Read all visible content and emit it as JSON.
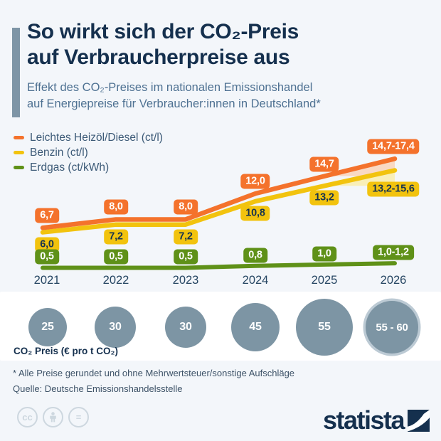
{
  "header": {
    "title_line1": "So wirkt sich der CO₂-Preis",
    "title_line2": "auf Verbraucherpreise aus",
    "subtitle_line1": "Effekt des CO₂-Preises im nationalen Emissionshandel",
    "subtitle_line2": "auf Energiepreise für Verbraucher:innen in Deutschland*"
  },
  "legend": [
    {
      "label": "Leichtes Heizöl/Diesel (ct/l)",
      "color": "#f4722c"
    },
    {
      "label": "Benzin (ct/l)",
      "color": "#f2c30e"
    },
    {
      "label": "Erdgas (ct/kWh)",
      "color": "#5f9118"
    }
  ],
  "chart_data": {
    "type": "line",
    "x_categories": [
      "2021",
      "2022",
      "2023",
      "2024",
      "2025",
      "2026"
    ],
    "ylim": [
      0,
      19
    ],
    "grid": false,
    "legend_position": "top-left",
    "series": [
      {
        "name": "Leichtes Heizöl/Diesel (ct/l)",
        "color": "#f4722c",
        "band_color": "#f9d9c4",
        "text_color": "#ffffff",
        "label_side": "above",
        "values": [
          6.7,
          8.0,
          8.0,
          12.0,
          14.7,
          [
            14.7,
            17.4
          ]
        ],
        "labels": [
          "6,7",
          "8,0",
          "8,0",
          "12,0",
          "14,7",
          "14,7-17,4"
        ]
      },
      {
        "name": "Benzin (ct/l)",
        "color": "#f2c30e",
        "band_color": "#f9efb8",
        "text_color": "#17334f",
        "label_side": "below",
        "values": [
          6.0,
          7.2,
          7.2,
          10.8,
          13.2,
          [
            13.2,
            15.6
          ]
        ],
        "labels": [
          "6,0",
          "7,2",
          "7,2",
          "10,8",
          "13,2",
          "13,2-15,6"
        ]
      },
      {
        "name": "Erdgas (ct/kWh)",
        "color": "#5f9118",
        "band_color": "#dfe9cb",
        "text_color": "#ffffff",
        "label_side": "above",
        "values": [
          0.5,
          0.5,
          0.5,
          0.8,
          1.0,
          [
            1.0,
            1.2
          ]
        ],
        "labels": [
          "0,5",
          "0,5",
          "0,5",
          "0,8",
          "1,0",
          "1,0-1,2"
        ]
      }
    ]
  },
  "co2_row": {
    "label": "CO₂ Preis (€ pro t CO₂)",
    "values": [
      25,
      30,
      30,
      45,
      55,
      60
    ],
    "labels": [
      "25",
      "30",
      "30",
      "45",
      "55",
      "55 - 60"
    ],
    "circle_color": "#7d95a4",
    "ring_color": "#bccad4"
  },
  "footer": {
    "footnote": "* Alle Preise gerundet und ohne Mehrwertsteuer/sonstige Aufschläge",
    "source": "Quelle: Deutsche Emissionshandelsstelle",
    "brand": "statista",
    "license": {
      "cc": "cc",
      "equals": "="
    }
  }
}
